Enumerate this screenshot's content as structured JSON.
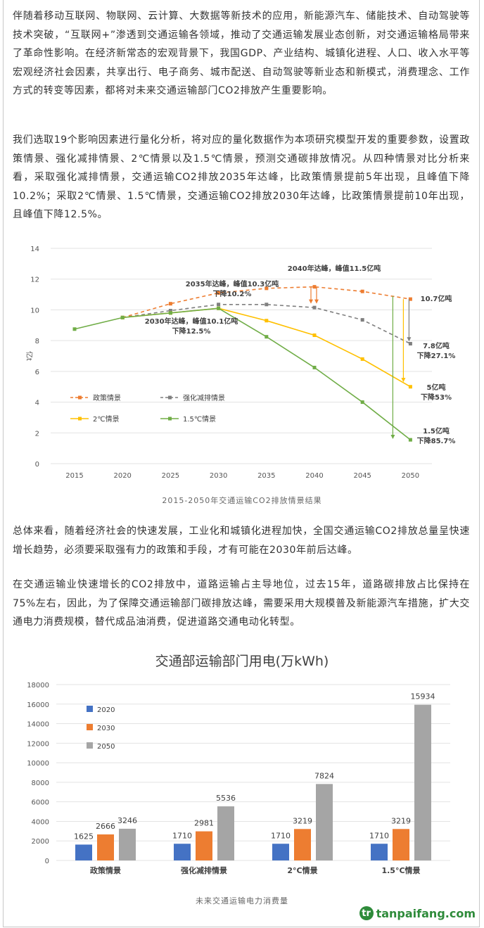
{
  "article": {
    "para1": "伴随着移动互联网、物联网、云计算、大数据等新技术的应用，新能源汽车、储能技术、自动驾驶等技术突破，“互联网+”渗透到交通运输各领域，推动了交通运输发展业态创新，对交通运输格局带来了革命性影响。在经济新常态的宏观背景下，我国GDP、产业结构、城镇化进程、人口、收入水平等宏观经济社会因素，共享出行、电子商务、城市配送、自动驾驶等新业态和新模式，消费理念、工作方式的转变等因素，都将对未来交通运输部门CO2排放产生重要影响。",
    "para2": "我们选取19个影响因素进行量化分析，将对应的量化数据作为本项研究模型开发的重要参数，设置政策情景、强化减排情景、2℃情景以及1.5℃情景，预测交通碳排放情况。从四种情景对比分析来看，采取强化减排情景，交通运输CO2排放2035年达峰，比政策情景提前5年出现，且峰值下降10.2%；采取2℃情景、1.5℃情景，交通运输CO2排放2030年达峰，比政策情景提前10年出现，且峰值下降12.5%。",
    "para3": "总体来看，随着经济社会的快速发展，工业化和城镇化进程加快，全国交通运输CO2排放总量呈快速增长趋势，必须要采取强有力的政策和手段，才有可能在2030年前后达峰。",
    "para4": "在交通运输业快速增长的CO2排放中，道路运输占主导地位，过去15年，道路碳排放占比保持在75%左右，因此，为了保障交通运输部门碳排放达峰，需要采用大规模普及新能源汽车措施，扩大交通电力消费规模，替代成品油消费，促进道路交通电动化转型。"
  },
  "chart_data": [
    {
      "type": "line",
      "title": "",
      "caption": "2015-2050年交通运输CO2排放情景结果",
      "xlabel": "",
      "ylabel": "亿t",
      "x": [
        2015,
        2020,
        2025,
        2030,
        2035,
        2040,
        2045,
        2050
      ],
      "xticks": [
        "2015",
        "2020",
        "2025",
        "2030",
        "2035",
        "2040",
        "2045",
        "2050"
      ],
      "ylim": [
        0,
        14
      ],
      "yticks": [
        "0",
        "2",
        "4",
        "6",
        "8",
        "10",
        "12",
        "14"
      ],
      "series": [
        {
          "name": "政策情景",
          "color": "#ed7d31",
          "dash": true,
          "values": [
            null,
            9.5,
            10.4,
            11.1,
            11.4,
            11.5,
            11.2,
            10.7
          ]
        },
        {
          "name": "强化减排情景",
          "color": "#7f7f7f",
          "dash": true,
          "values": [
            null,
            9.5,
            9.95,
            10.35,
            10.35,
            10.15,
            9.35,
            7.8
          ]
        },
        {
          "name": "2℃情景",
          "color": "#ffc000",
          "dash": false,
          "values": [
            null,
            9.5,
            9.8,
            10.1,
            9.3,
            8.35,
            6.8,
            5.0
          ]
        },
        {
          "name": "1.5℃情景",
          "color": "#70ad47",
          "dash": false,
          "values": [
            8.75,
            9.5,
            9.8,
            10.1,
            8.25,
            6.25,
            4.0,
            1.55
          ]
        }
      ],
      "legend_labels": [
        "- - 政策情景",
        "- - 强化减排情景",
        "2℃情景",
        "1.5℃情景"
      ],
      "annotations": [
        {
          "lines": [
            "2040年达峰，峰值11.5亿吨"
          ]
        },
        {
          "lines": [
            "2035年达峰，峰值10.3亿吨",
            "下降10.2%"
          ]
        },
        {
          "lines": [
            "2030年达峰，峰值10.1亿吨",
            "下降12.5%"
          ]
        },
        {
          "lines": [
            "10.7亿吨"
          ]
        },
        {
          "lines": [
            "7.8亿吨",
            "下降27.1%"
          ]
        },
        {
          "lines": [
            "5亿吨",
            "下降53%"
          ]
        },
        {
          "lines": [
            "1.5亿吨",
            "下降85.7%"
          ]
        }
      ]
    },
    {
      "type": "bar",
      "title": "交通部运输部门用电(万kWh)",
      "caption": "未来交通运输电力消费量",
      "categories": [
        "政策情景",
        "强化减排情景",
        "2°C情景",
        "1.5°C情景"
      ],
      "ylim": [
        0,
        18000
      ],
      "yticks": [
        "0",
        "2000",
        "4000",
        "6000",
        "8000",
        "10000",
        "12000",
        "14000",
        "16000",
        "18000"
      ],
      "series": [
        {
          "name": "2020",
          "color": "#4472c4",
          "values": [
            1625,
            1710,
            1710,
            1710
          ]
        },
        {
          "name": "2030",
          "color": "#ed7d31",
          "values": [
            2666,
            2981,
            3219,
            3219
          ]
        },
        {
          "name": "2050",
          "color": "#a5a5a5",
          "values": [
            3246,
            5536,
            7824,
            15934
          ]
        }
      ]
    }
  ],
  "watermark": {
    "logo": "tr",
    "text": "tanpaifang.com"
  }
}
